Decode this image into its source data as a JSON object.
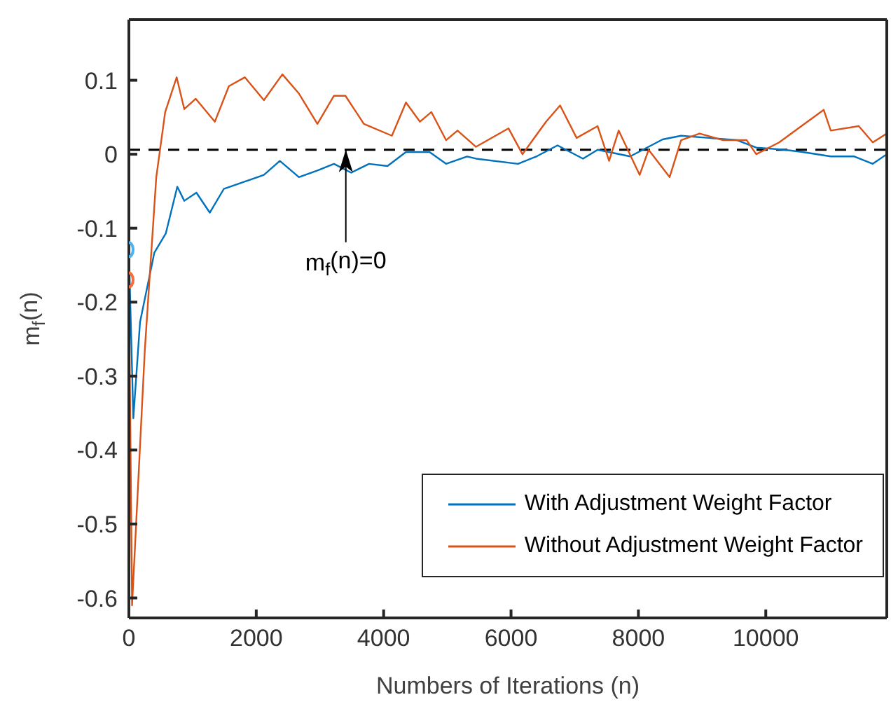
{
  "chart_data": {
    "type": "line",
    "xlabel": "Numbers of Iterations (n)",
    "ylabel": "m$_{f}$(n)",
    "xlim": [
      0,
      11900
    ],
    "xticks": [
      0,
      2000,
      4000,
      6000,
      8000,
      10000
    ],
    "ylim": [
      -0.627,
      0.182
    ],
    "yticks": [
      0.1,
      0,
      -0.1,
      -0.2,
      -0.3,
      -0.4,
      -0.5,
      -0.6
    ],
    "grid": false,
    "legend": "bottom right",
    "line_style": "solid",
    "ref_lines": [
      {
        "axis": "y",
        "value": 0.006,
        "color": "#000000",
        "line_style": "dashed"
      }
    ],
    "annotations": [
      {
        "text": "m$_{f}$(n)=0",
        "x": 3400,
        "y": 0.006
      }
    ],
    "series": [
      {
        "name": "With Adjustment Weight Factor",
        "color": "#0072bd",
        "x": [
          0,
          70,
          175,
          400,
          580,
          760,
          870,
          1060,
          1270,
          1490,
          1790,
          2120,
          2370,
          2670,
          2960,
          3220,
          3490,
          3770,
          4060,
          4350,
          4720,
          4980,
          5310,
          5450,
          6110,
          6400,
          6730,
          7130,
          7360,
          7870,
          8380,
          8670,
          9110,
          9550,
          9850,
          10290,
          10580,
          11020,
          11390,
          11680,
          11900
        ],
        "values": [
          -0.13,
          -0.357,
          -0.227,
          -0.133,
          -0.107,
          -0.044,
          -0.063,
          -0.052,
          -0.079,
          -0.047,
          -0.038,
          -0.028,
          -0.009,
          -0.031,
          -0.022,
          -0.013,
          -0.025,
          -0.013,
          -0.016,
          0.003,
          0.003,
          -0.013,
          -0.003,
          -0.006,
          -0.013,
          -0.003,
          0.012,
          -0.006,
          0.006,
          -0.003,
          0.02,
          0.025,
          0.022,
          0.019,
          0.009,
          0.006,
          0.003,
          -0.003,
          -0.003,
          -0.013,
          0.0
        ]
      },
      {
        "name": "Without Adjustment Weight Factor",
        "color": "#d95319",
        "x": [
          0,
          50,
          250,
          430,
          570,
          750,
          870,
          1050,
          1350,
          1570,
          1820,
          2120,
          2410,
          2670,
          2960,
          3220,
          3400,
          3690,
          4130,
          4350,
          4570,
          4750,
          4980,
          5160,
          5450,
          5960,
          6180,
          6550,
          6770,
          7030,
          7360,
          7540,
          7690,
          8020,
          8160,
          8490,
          8670,
          8960,
          9330,
          9700,
          9850,
          10210,
          10510,
          10910,
          11020,
          11460,
          11680,
          11900
        ],
        "values": [
          -0.17,
          -0.61,
          -0.265,
          -0.031,
          0.057,
          0.104,
          0.061,
          0.075,
          0.044,
          0.092,
          0.104,
          0.073,
          0.108,
          0.082,
          0.041,
          0.079,
          0.079,
          0.041,
          0.025,
          0.07,
          0.044,
          0.057,
          0.019,
          0.032,
          0.01,
          0.035,
          0.0,
          0.044,
          0.066,
          0.022,
          0.038,
          -0.009,
          0.032,
          -0.028,
          0.006,
          -0.031,
          0.019,
          0.028,
          0.019,
          0.019,
          0.0,
          0.016,
          0.035,
          0.06,
          0.032,
          0.038,
          0.016,
          0.028
        ]
      },
      {
        "type": "scatter",
        "marker": "circle",
        "color": "#4db3f0",
        "x": [
          0
        ],
        "values": [
          -0.129
        ]
      },
      {
        "type": "scatter",
        "marker": "circle",
        "color": "#f07040",
        "x": [
          0
        ],
        "values": [
          -0.17
        ]
      }
    ]
  }
}
